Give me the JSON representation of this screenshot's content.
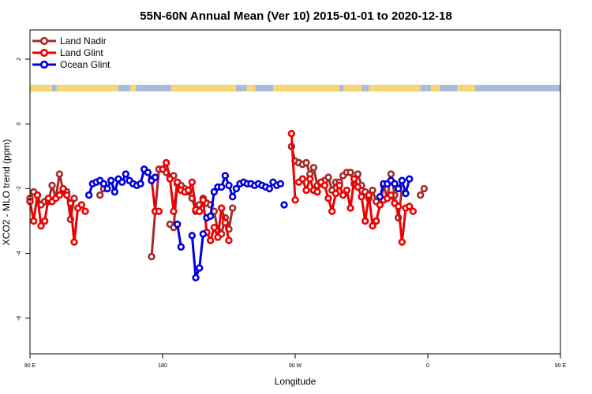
{
  "chart_data": {
    "type": "line",
    "title": "55N-60N Annual Mean (Ver 10)   2015-01-01 to 2020-12-18",
    "xlabel": "Longitude",
    "ylabel": "XCO2 - MLO trend (ppm)",
    "xlim": [
      90,
      450
    ],
    "ylim": [
      -7.1,
      2.9
    ],
    "x_ticks": [
      {
        "value": 90,
        "label": "90 E"
      },
      {
        "value": 180,
        "label": "180"
      },
      {
        "value": 270,
        "label": "90 W"
      },
      {
        "value": 360,
        "label": "0"
      },
      {
        "value": 450,
        "label": "90 E"
      },
      {
        "value": 540,
        "label": "180"
      }
    ],
    "y_ticks": [
      {
        "value": 2,
        "label": "2"
      },
      {
        "value": 0,
        "label": "0"
      },
      {
        "value": -2,
        "label": "-2"
      },
      {
        "value": -4,
        "label": "-4"
      },
      {
        "value": -6,
        "label": "-6"
      }
    ],
    "legend_position": "top-left",
    "grid": false,
    "land_mask_band": {
      "y_range": [
        1.0,
        1.2
      ],
      "land_color": "#f7d774",
      "ocean_color": "#a9bddb"
    },
    "series": [
      {
        "name": "Land Nadir",
        "color": "#a52a2a",
        "segments": [
          [
            [
              90,
              -2.3
            ],
            [
              92.5,
              -2.1
            ],
            [
              95,
              -2.2
            ],
            [
              97.5,
              -2.5
            ],
            [
              100,
              -2.4
            ],
            [
              102.5,
              -2.4
            ],
            [
              105,
              -1.9
            ],
            [
              107.5,
              -2.3
            ],
            [
              110,
              -1.55
            ],
            [
              112.5,
              -2.05
            ],
            [
              115,
              -2.1
            ],
            [
              117.5,
              -2.95
            ],
            [
              120,
              -2.3
            ]
          ],
          [
            [
              137.5,
              -2.2
            ],
            [
              140,
              -2.0
            ]
          ],
          [
            [
              172.5,
              -4.1
            ],
            [
              175,
              -2.7
            ],
            [
              177.5,
              -1.4
            ],
            [
              180,
              -1.4
            ],
            [
              182.5,
              -1.5
            ],
            [
              185,
              -1.65
            ],
            [
              187.5,
              -1.6
            ]
          ],
          [
            [
              185,
              -3.1
            ],
            [
              187.5,
              -3.2
            ],
            [
              190,
              -1.85
            ],
            [
              192.5,
              -1.9
            ],
            [
              195,
              -2.0
            ],
            [
              197.5,
              -2.1
            ],
            [
              200,
              -2.3
            ],
            [
              202.5,
              -2.7
            ],
            [
              205,
              -2.5
            ],
            [
              207.5,
              -2.3
            ],
            [
              210,
              -2.45
            ],
            [
              212.5,
              -2.5
            ],
            [
              215,
              -2.7
            ],
            [
              217.5,
              -3.3
            ],
            [
              220,
              -3.4
            ],
            [
              222.5,
              -2.9
            ],
            [
              225,
              -3.25
            ],
            [
              227.5,
              -2.6
            ]
          ],
          [
            [
              267.5,
              -0.7
            ],
            [
              270,
              -1.15
            ]
          ],
          [
            [
              272.5,
              -1.2
            ],
            [
              275,
              -1.25
            ],
            [
              277.5,
              -1.2
            ],
            [
              280,
              -1.55
            ],
            [
              282.5,
              -1.35
            ],
            [
              285,
              -1.9
            ],
            [
              287.5,
              -1.85
            ],
            [
              290,
              -1.75
            ],
            [
              292.5,
              -1.65
            ],
            [
              295,
              -2.05
            ],
            [
              297.5,
              -1.8
            ],
            [
              300,
              -1.8
            ],
            [
              302.5,
              -1.6
            ],
            [
              305,
              -1.5
            ],
            [
              307.5,
              -1.5
            ],
            [
              310,
              -1.85
            ],
            [
              312.5,
              -1.55
            ],
            [
              315,
              -1.9
            ],
            [
              317.5,
              -2.1
            ],
            [
              320,
              -2.3
            ],
            [
              322.5,
              -2.05
            ],
            [
              325,
              -2.4
            ],
            [
              327.5,
              -2.5
            ],
            [
              330,
              -1.9
            ],
            [
              332.5,
              -2.3
            ],
            [
              335,
              -1.55
            ],
            [
              337.5,
              -2.2
            ],
            [
              340,
              -2.9
            ],
            [
              342.5,
              -2.0
            ]
          ],
          [
            [
              355,
              -2.2
            ],
            [
              357.5,
              -2.0
            ]
          ]
        ]
      },
      {
        "name": "Land Glint",
        "color": "#ee0000",
        "segments": [
          [
            [
              90,
              -2.4
            ],
            [
              92.5,
              -3.0
            ],
            [
              95,
              -2.2
            ],
            [
              97.5,
              -3.15
            ],
            [
              100,
              -3.0
            ],
            [
              102.5,
              -2.3
            ],
            [
              105,
              -2.4
            ],
            [
              107.5,
              -2.3
            ],
            [
              110,
              -2.2
            ],
            [
              112.5,
              -2.0
            ],
            [
              115,
              -2.2
            ],
            [
              117.5,
              -2.45
            ],
            [
              120,
              -3.65
            ],
            [
              122.5,
              -2.6
            ],
            [
              125,
              -2.5
            ],
            [
              127.5,
              -2.7
            ]
          ],
          [
            [
              172.5,
              -1.7
            ],
            [
              175,
              -2.7
            ],
            [
              177.5,
              -2.7
            ]
          ],
          [
            [
              180,
              -1.4
            ],
            [
              182.5,
              -1.2
            ],
            [
              185,
              -1.7
            ],
            [
              187.5,
              -2.7
            ],
            [
              190,
              -1.8
            ],
            [
              192.5,
              -2.05
            ],
            [
              195,
              -2.1
            ],
            [
              197.5,
              -2.05
            ],
            [
              200,
              -1.8
            ],
            [
              202.5,
              -2.65
            ],
            [
              205,
              -2.7
            ],
            [
              207.5,
              -2.35
            ],
            [
              210,
              -3.35
            ],
            [
              212.5,
              -3.6
            ],
            [
              215,
              -3.2
            ],
            [
              217.5,
              -3.5
            ],
            [
              220,
              -2.6
            ],
            [
              222.5,
              -3.05
            ],
            [
              225,
              -3.6
            ]
          ],
          [
            [
              267.5,
              -0.3
            ],
            [
              270,
              -2.35
            ]
          ],
          [
            [
              272.5,
              -1.8
            ],
            [
              275,
              -1.7
            ],
            [
              277.5,
              -2.05
            ],
            [
              280,
              -1.7
            ],
            [
              282.5,
              -2.05
            ],
            [
              285,
              -2.1
            ],
            [
              287.5,
              -1.8
            ],
            [
              290,
              -1.9
            ],
            [
              292.5,
              -2.3
            ],
            [
              295,
              -2.7
            ],
            [
              297.5,
              -2.15
            ],
            [
              300,
              -1.9
            ],
            [
              302.5,
              -2.2
            ],
            [
              305,
              -2.05
            ],
            [
              307.5,
              -2.6
            ],
            [
              310,
              -1.7
            ],
            [
              312.5,
              -1.95
            ],
            [
              315,
              -2.25
            ],
            [
              317.5,
              -3.0
            ],
            [
              320,
              -2.2
            ],
            [
              322.5,
              -3.15
            ],
            [
              325,
              -3.0
            ],
            [
              327.5,
              -2.5
            ],
            [
              330,
              -2.35
            ],
            [
              332.5,
              -2.3
            ],
            [
              335,
              -2.2
            ],
            [
              337.5,
              -2.45
            ],
            [
              340,
              -2.55
            ],
            [
              342.5,
              -3.65
            ],
            [
              345,
              -2.6
            ],
            [
              347.5,
              -2.55
            ],
            [
              350,
              -2.7
            ]
          ]
        ]
      },
      {
        "name": "Ocean Glint",
        "color": "#0000dd",
        "segments": [
          [
            [
              130,
              -2.2
            ],
            [
              132.5,
              -1.85
            ],
            [
              135,
              -1.8
            ],
            [
              137.5,
              -1.75
            ],
            [
              140,
              -1.85
            ],
            [
              142.5,
              -2.0
            ],
            [
              145,
              -1.75
            ],
            [
              147.5,
              -2.1
            ],
            [
              150,
              -1.7
            ],
            [
              152.5,
              -1.8
            ],
            [
              155,
              -1.55
            ],
            [
              157.5,
              -1.75
            ],
            [
              160,
              -1.85
            ],
            [
              162.5,
              -1.9
            ],
            [
              165,
              -1.85
            ],
            [
              167.5,
              -1.4
            ],
            [
              170,
              -1.5
            ],
            [
              172.5,
              -1.75
            ],
            [
              175,
              -1.65
            ]
          ],
          [
            [
              190,
              -3.1
            ],
            [
              192.5,
              -3.8
            ]
          ],
          [
            [
              200,
              -3.45
            ],
            [
              202.5,
              -4.75
            ],
            [
              205,
              -4.45
            ],
            [
              207.5,
              -3.4
            ]
          ],
          [
            [
              210,
              -2.9
            ],
            [
              212.5,
              -2.85
            ],
            [
              215,
              -2.1
            ],
            [
              217.5,
              -1.95
            ],
            [
              220,
              -1.95
            ],
            [
              222.5,
              -1.6
            ],
            [
              225,
              -1.9
            ],
            [
              227.5,
              -2.25
            ],
            [
              230,
              -2.0
            ],
            [
              232.5,
              -1.85
            ],
            [
              235,
              -1.8
            ],
            [
              237.5,
              -1.85
            ],
            [
              240,
              -1.85
            ],
            [
              242.5,
              -1.9
            ],
            [
              245,
              -1.85
            ],
            [
              247.5,
              -1.9
            ],
            [
              250,
              -1.95
            ],
            [
              252.5,
              -2.0
            ],
            [
              255,
              -1.8
            ],
            [
              257.5,
              -1.9
            ],
            [
              260,
              -1.85
            ]
          ],
          [
            [
              262.5,
              -2.5
            ]
          ],
          [
            [
              327.5,
              -2.25
            ],
            [
              330,
              -1.85
            ],
            [
              332.5,
              -1.85
            ],
            [
              335,
              -1.75
            ],
            [
              337.5,
              -1.85
            ],
            [
              340,
              -2.0
            ],
            [
              342.5,
              -1.75
            ],
            [
              345,
              -2.15
            ],
            [
              347.5,
              -1.7
            ]
          ]
        ]
      }
    ]
  }
}
